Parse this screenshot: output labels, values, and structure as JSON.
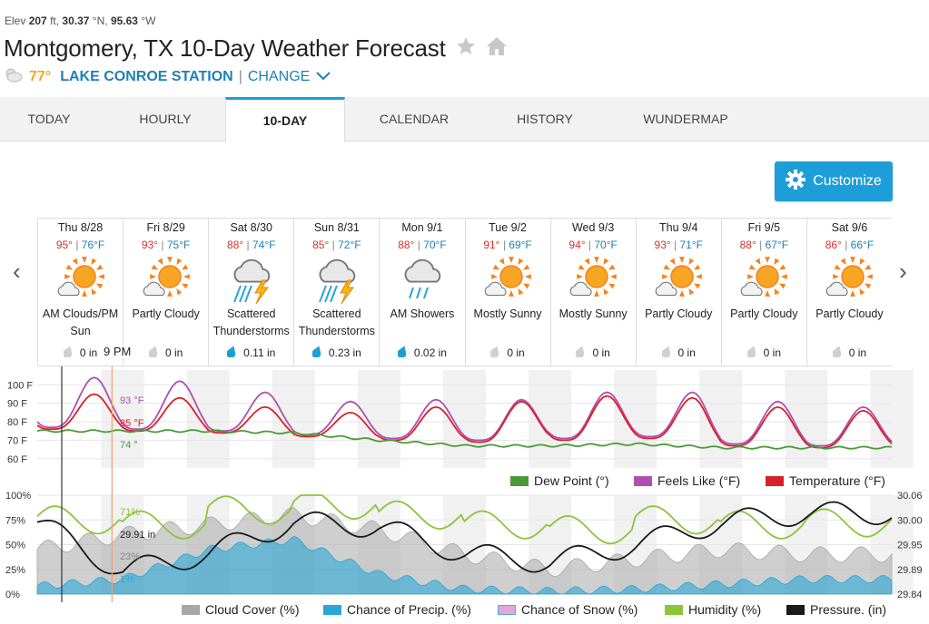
{
  "header": {
    "elev_label": "Elev",
    "elev_value": "207",
    "elev_unit": "ft,",
    "lat_value": "30.37",
    "lat_unit": "°N,",
    "lon_value": "95.63",
    "lon_unit": "°W",
    "title": "Montgomery, TX 10-Day Weather Forecast",
    "current_temp": "77°",
    "station": "LAKE CONROE STATION",
    "separator": "|",
    "change_label": "CHANGE"
  },
  "tabs": [
    "TODAY",
    "HOURLY",
    "10-DAY",
    "CALENDAR",
    "HISTORY",
    "WUNDERMAP"
  ],
  "active_tab": "10-DAY",
  "customize_label": "Customize",
  "days": [
    {
      "name": "Thu 8/28",
      "hi": "95°",
      "lo": "76°F",
      "icon": "partly-cloudy-icon",
      "cond1": "AM Clouds/PM",
      "cond2": "Sun",
      "precip": "0 in",
      "drop": "gray"
    },
    {
      "name": "Fri 8/29",
      "hi": "93°",
      "lo": "75°F",
      "icon": "partly-cloudy-icon",
      "cond1": "Partly Cloudy",
      "cond2": "",
      "precip": "0 in",
      "drop": "gray"
    },
    {
      "name": "Sat 8/30",
      "hi": "88°",
      "lo": "74°F",
      "icon": "thunderstorm-icon",
      "cond1": "Scattered",
      "cond2": "Thunderstorms",
      "precip": "0.11 in",
      "drop": "blue"
    },
    {
      "name": "Sun 8/31",
      "hi": "85°",
      "lo": "72°F",
      "icon": "thunderstorm-icon",
      "cond1": "Scattered",
      "cond2": "Thunderstorms",
      "precip": "0.23 in",
      "drop": "blue"
    },
    {
      "name": "Mon 9/1",
      "hi": "88°",
      "lo": "70°F",
      "icon": "showers-icon",
      "cond1": "AM Showers",
      "cond2": "",
      "precip": "0.02 in",
      "drop": "blue"
    },
    {
      "name": "Tue 9/2",
      "hi": "91°",
      "lo": "69°F",
      "icon": "partly-cloudy-icon",
      "cond1": "Mostly Sunny",
      "cond2": "",
      "precip": "0 in",
      "drop": "gray"
    },
    {
      "name": "Wed 9/3",
      "hi": "94°",
      "lo": "70°F",
      "icon": "partly-cloudy-icon",
      "cond1": "Mostly Sunny",
      "cond2": "",
      "precip": "0 in",
      "drop": "gray"
    },
    {
      "name": "Thu 9/4",
      "hi": "93°",
      "lo": "71°F",
      "icon": "partly-cloudy-icon",
      "cond1": "Partly Cloudy",
      "cond2": "",
      "precip": "0 in",
      "drop": "gray"
    },
    {
      "name": "Fri 9/5",
      "hi": "88°",
      "lo": "67°F",
      "icon": "partly-cloudy-icon",
      "cond1": "Partly Cloudy",
      "cond2": "",
      "precip": "0 in",
      "drop": "gray"
    },
    {
      "name": "Sat 9/6",
      "hi": "86°",
      "lo": "66°F",
      "icon": "partly-cloudy-icon",
      "cond1": "Partly Cloudy",
      "cond2": "",
      "precip": "0 in",
      "drop": "gray"
    }
  ],
  "cursor": {
    "time": "9 PM",
    "feels_like": "93 °F",
    "temperature": "85 °F",
    "dew_point": "74 °",
    "humidity": "71%",
    "pressure": "29.91 in",
    "cloud_cover": "23%",
    "precip_chance": "1%"
  },
  "chart1": {
    "y_ticks": [
      "100 F",
      "90 F",
      "80 F",
      "70 F",
      "60 F"
    ],
    "legend": [
      "Dew Point (°)",
      "Feels Like (°F)",
      "Temperature (°F)"
    ]
  },
  "chart2": {
    "y_ticks_left": [
      "100%",
      "75%",
      "50%",
      "25%",
      "0%"
    ],
    "y_ticks_right": [
      "30.06",
      "30.00",
      "29.95",
      "29.89",
      "29.84"
    ],
    "legend": [
      "Cloud Cover (%)",
      "Chance of Precip. (%)",
      "Chance of Snow (%)",
      "Humidity (%)",
      "Pressure. (in)"
    ]
  },
  "colors": {
    "accent": "#1e9ed8",
    "hi": "#d9302c",
    "lo": "#1e7fb8",
    "dew": "#4a9a3a",
    "feels": "#b04fb0",
    "temp": "#d9202a",
    "cloud": "#a7a7a7",
    "precip": "#2aa7d5",
    "snow": "#e3a5da",
    "humidity": "#8cc43c",
    "pressure": "#1a1a1a"
  },
  "chart_data": [
    {
      "type": "line",
      "title": "",
      "ylim": [
        60,
        105
      ],
      "x": [
        "Thu 8/28",
        "Fri 8/29",
        "Sat 8/30",
        "Sun 8/31",
        "Mon 9/1",
        "Tue 9/2",
        "Wed 9/3",
        "Thu 9/4",
        "Fri 9/5",
        "Sat 9/6"
      ],
      "series": [
        {
          "name": "Temperature (°F)",
          "daily_high": [
            95,
            93,
            88,
            85,
            88,
            91,
            94,
            93,
            88,
            86
          ],
          "daily_low": [
            76,
            75,
            74,
            72,
            70,
            69,
            70,
            71,
            67,
            66
          ]
        },
        {
          "name": "Feels Like (°F)",
          "daily_high": [
            104,
            102,
            96,
            91,
            92,
            92,
            96,
            96,
            91,
            88
          ],
          "daily_low": [
            77,
            76,
            75,
            73,
            71,
            70,
            71,
            72,
            68,
            67
          ]
        },
        {
          "name": "Dew Point (°)",
          "daily_mean": [
            75,
            75,
            75,
            74,
            70,
            67,
            67,
            68,
            66,
            66
          ]
        }
      ]
    },
    {
      "type": "area",
      "title": "",
      "ylim_left": [
        0,
        100
      ],
      "ylim_right": [
        29.84,
        30.06
      ],
      "x": [
        "Thu 8/28",
        "Fri 8/29",
        "Sat 8/30",
        "Sun 8/31",
        "Mon 9/1",
        "Tue 9/2",
        "Wed 9/3",
        "Thu 9/4",
        "Fri 9/5",
        "Sat 9/6"
      ],
      "series": [
        {
          "name": "Cloud Cover (%)",
          "daily_mean": [
            45,
            60,
            70,
            80,
            65,
            40,
            25,
            35,
            45,
            40
          ]
        },
        {
          "name": "Chance of Precip. (%)",
          "daily_mean": [
            8,
            15,
            45,
            55,
            20,
            5,
            3,
            5,
            10,
            15
          ]
        },
        {
          "name": "Humidity (%)",
          "daily_mean": [
            75,
            70,
            85,
            90,
            80,
            70,
            65,
            75,
            70,
            72
          ]
        },
        {
          "name": "Pressure. (in)",
          "daily_mean": [
            30.0,
            29.89,
            29.93,
            30.0,
            29.99,
            29.93,
            29.91,
            29.95,
            30.0,
            30.02
          ]
        }
      ]
    }
  ]
}
